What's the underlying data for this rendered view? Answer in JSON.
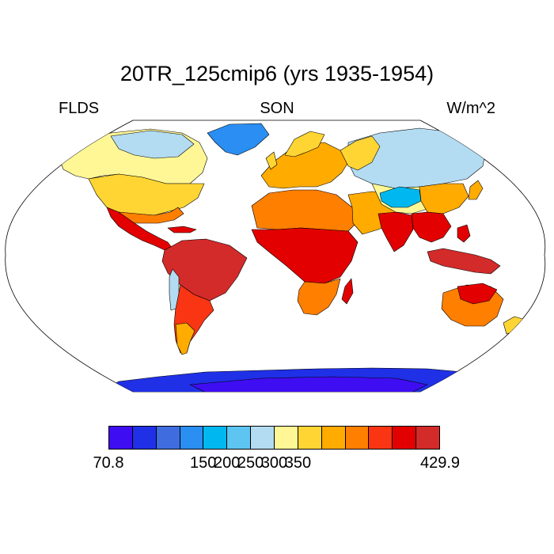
{
  "header": {
    "title": "20TR_125cmip6 (yrs 1935-1954)",
    "variable": "FLDS",
    "season": "SON",
    "units": "W/m^2"
  },
  "map": {
    "projection": "robinson",
    "land_only_field": true,
    "ocean_color": "#ffffff",
    "coastline_color": "#000000"
  },
  "colorbar": {
    "min": 70.8,
    "max": 429.9,
    "colors": [
      "#3f0df2",
      "#1f30e6",
      "#3f6de0",
      "#2a8ef2",
      "#00b8ef",
      "#5ec4f2",
      "#b3dcf2",
      "#fff795",
      "#ffd534",
      "#ffab00",
      "#ff7f00",
      "#f93513",
      "#e20000",
      "#d32a2a"
    ],
    "labels": [
      "70.8",
      "150",
      "200",
      "250",
      "300",
      "350",
      "429.9"
    ]
  },
  "chart_data": {
    "type": "heatmap",
    "title": "20TR_125cmip6 (yrs 1935-1954)",
    "variable": "FLDS",
    "season": "SON",
    "units": "W/m^2",
    "range": [
      70.8,
      429.9
    ],
    "colorbar_ticks": [
      70.8,
      150,
      200,
      250,
      300,
      350,
      429.9
    ],
    "regions": [
      {
        "name": "Antarctica",
        "level": 1
      },
      {
        "name": "Greenland",
        "level": 3
      },
      {
        "name": "Siberia",
        "level": 6
      },
      {
        "name": "Tibetan Plateau",
        "level": 4
      },
      {
        "name": "Canada",
        "level": 7
      },
      {
        "name": "United States",
        "level": 8
      },
      {
        "name": "Mexico and Central America",
        "level": 12
      },
      {
        "name": "Amazon",
        "level": 13
      },
      {
        "name": "Southern South America",
        "level": 9
      },
      {
        "name": "Europe",
        "level": 9
      },
      {
        "name": "Sahara",
        "level": 10
      },
      {
        "name": "Central Africa",
        "level": 12
      },
      {
        "name": "Southern Africa",
        "level": 10
      },
      {
        "name": "Middle East",
        "level": 9
      },
      {
        "name": "India",
        "level": 12
      },
      {
        "name": "Southeast Asia",
        "level": 12
      },
      {
        "name": "Indonesia",
        "level": 13
      },
      {
        "name": "Australia",
        "level": 10
      },
      {
        "name": "New Zealand",
        "level": 8
      }
    ]
  }
}
